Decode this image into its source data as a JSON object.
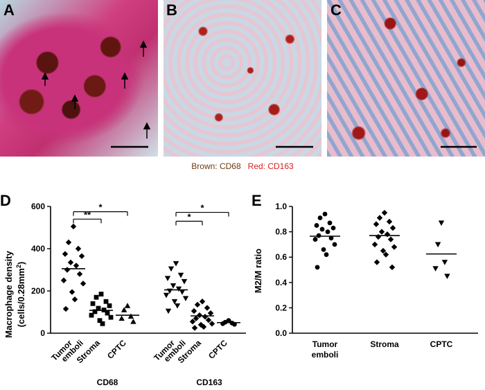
{
  "panels": {
    "A": {
      "letter": "A"
    },
    "B": {
      "letter": "B"
    },
    "C": {
      "letter": "C"
    },
    "D": {
      "letter": "D"
    },
    "E": {
      "letter": "E"
    }
  },
  "stain_legend": {
    "brown_label": "Brown: CD68",
    "red_label": "Red: CD163",
    "brown_color": "#6b3a12",
    "red_color": "#d81e1e"
  },
  "chart_data": [
    {
      "panel": "D",
      "type": "scatter",
      "ylabel_line1": "Macrophage density",
      "ylabel_line2": "(cells/0.28mm",
      "ylabel_sup": "2",
      "ylabel_end": ")",
      "ylim": [
        0,
        600
      ],
      "yticks": [
        "0",
        "200",
        "400",
        "600"
      ],
      "groups": [
        {
          "name": "CD68",
          "categories": [
            {
              "label": [
                "Tumor",
                "emboli"
              ],
              "marker": "diamond",
              "mean": 305,
              "values": [
                505,
                430,
                400,
                375,
                365,
                335,
                320,
                300,
                280,
                250,
                235,
                195,
                160,
                115
              ]
            },
            {
              "label": [
                "Stroma"
              ],
              "marker": "square",
              "mean": 108,
              "values": [
                185,
                170,
                150,
                140,
                130,
                118,
                110,
                102,
                95,
                85,
                75,
                60,
                45
              ]
            },
            {
              "label": [
                "CPTC"
              ],
              "marker": "triangle-up",
              "mean": 85,
              "values": [
                130,
                110,
                80,
                70,
                55
              ]
            }
          ],
          "brackets": [
            {
              "from": 0,
              "to": 1,
              "label": "**",
              "y": 540
            },
            {
              "from": 0,
              "to": 2,
              "label": "*",
              "y": 575
            }
          ]
        },
        {
          "name": "CD163",
          "categories": [
            {
              "label": [
                "Tumor",
                "emboli"
              ],
              "marker": "triangle-down",
              "mean": 205,
              "values": [
                330,
                305,
                275,
                260,
                245,
                225,
                210,
                200,
                195,
                180,
                165,
                150,
                130,
                105
              ]
            },
            {
              "label": [
                "Stroma"
              ],
              "marker": "diamond",
              "mean": 82,
              "values": [
                150,
                135,
                120,
                105,
                95,
                85,
                78,
                70,
                62,
                55,
                45,
                40,
                30,
                25
              ]
            },
            {
              "label": [
                "CPTC"
              ],
              "marker": "circle",
              "mean": 50,
              "values": [
                60,
                52,
                48,
                45,
                42
              ]
            }
          ],
          "brackets": [
            {
              "from": 0,
              "to": 1,
              "label": "*",
              "y": 530
            },
            {
              "from": 0,
              "to": 2,
              "label": "*",
              "y": 572
            }
          ]
        }
      ]
    },
    {
      "panel": "E",
      "type": "scatter",
      "ylabel": "M2/M ratio",
      "ylim": [
        0,
        1.0
      ],
      "yticks": [
        "0.0",
        "0.2",
        "0.4",
        "0.6",
        "0.8",
        "1.0"
      ],
      "categories": [
        {
          "label": [
            "Tumor",
            "emboli"
          ],
          "marker": "circle",
          "mean": 0.765,
          "values": [
            0.94,
            0.91,
            0.87,
            0.85,
            0.83,
            0.82,
            0.8,
            0.77,
            0.75,
            0.74,
            0.7,
            0.66,
            0.62,
            0.52
          ]
        },
        {
          "label": [
            "Stroma"
          ],
          "marker": "diamond",
          "mean": 0.77,
          "values": [
            0.95,
            0.91,
            0.88,
            0.86,
            0.83,
            0.8,
            0.78,
            0.76,
            0.74,
            0.7,
            0.68,
            0.65,
            0.62,
            0.56,
            0.52
          ]
        },
        {
          "label": [
            "CPTC"
          ],
          "marker": "triangle-down",
          "mean": 0.625,
          "values": [
            0.87,
            0.7,
            0.56,
            0.51,
            0.45
          ]
        }
      ]
    }
  ]
}
